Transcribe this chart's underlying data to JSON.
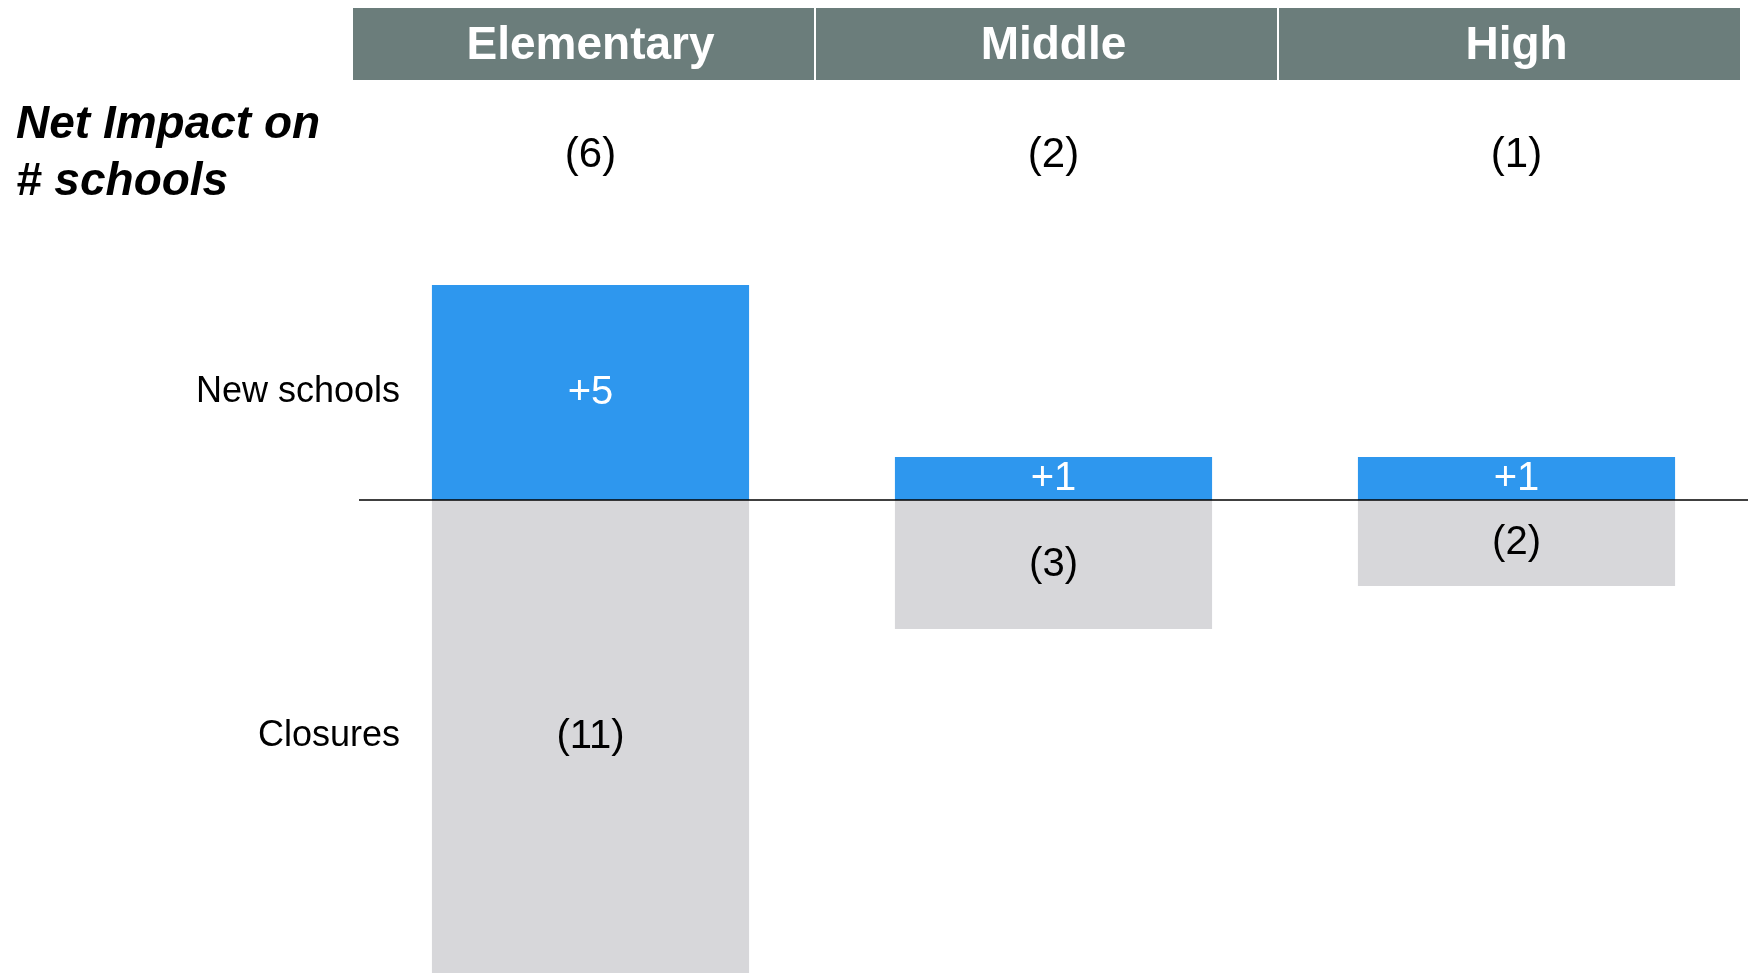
{
  "chart_data": {
    "type": "bar",
    "stacked": true,
    "categories": [
      "Elementary",
      "Middle",
      "High"
    ],
    "series": [
      {
        "name": "New schools",
        "color": "#2e97ee",
        "values": [
          5,
          1,
          1
        ],
        "value_labels": [
          "+5",
          "+1",
          "+1"
        ]
      },
      {
        "name": "Closures",
        "color": "#d7d7da",
        "values": [
          -11,
          -3,
          -2
        ],
        "value_labels": [
          "(11)",
          "(3)",
          "(2)"
        ]
      }
    ],
    "annotations": [
      "Net Impact on # schools",
      "(6)",
      "(2)",
      "(1)"
    ],
    "ylim": [
      -11,
      5
    ],
    "grid": false,
    "legend": false,
    "tick_labels": false
  }
}
